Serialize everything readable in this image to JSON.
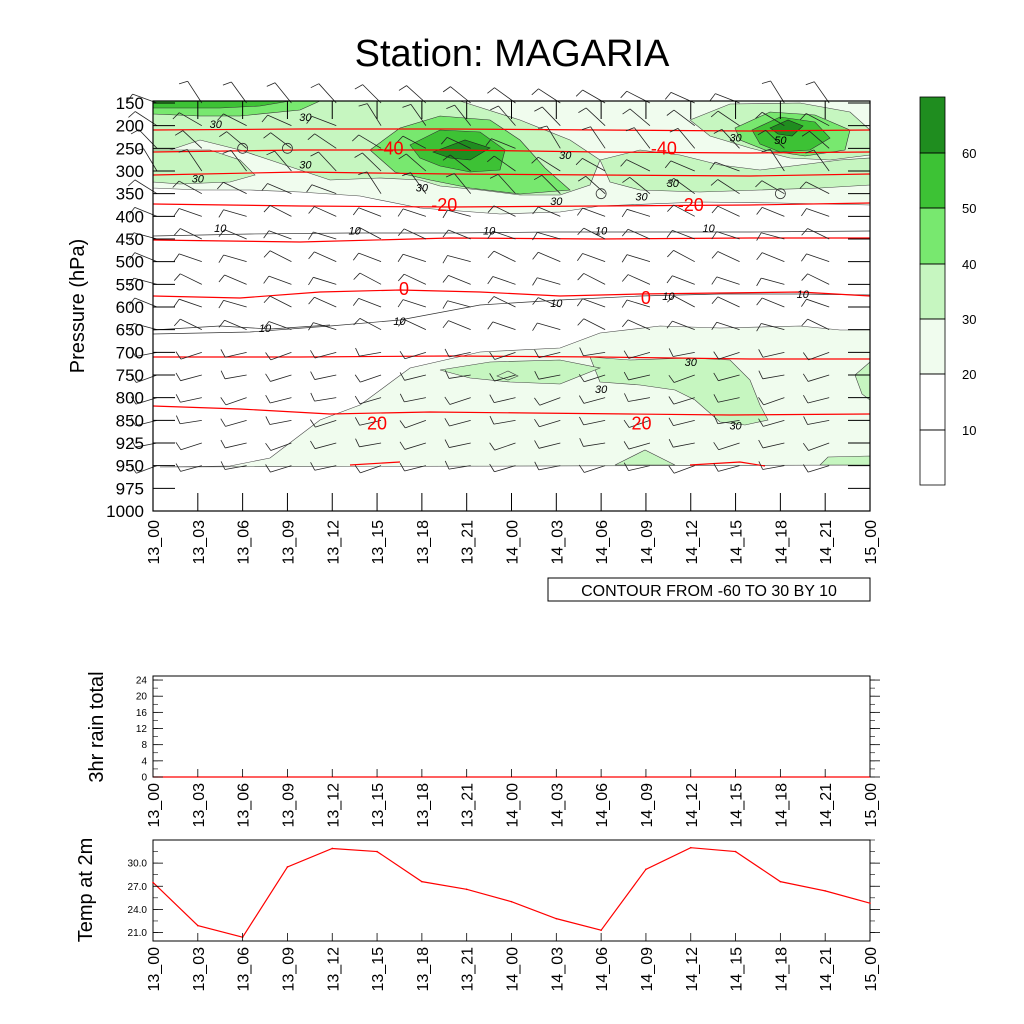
{
  "title": "Station: MAGARIA",
  "colors": {
    "iso": "#ff0000",
    "line": "#000000",
    "shade": [
      "#ffffff",
      "#ffffff",
      "#f0fcee",
      "#c6f6c0",
      "#78e86f",
      "#3dc235",
      "#1f8d1f"
    ]
  },
  "time_labels": [
    "13_00",
    "13_03",
    "13_06",
    "13_09",
    "13_12",
    "13_15",
    "13_18",
    "13_21",
    "14_00",
    "14_03",
    "14_06",
    "14_09",
    "14_12",
    "14_15",
    "14_18",
    "14_21",
    "15_00"
  ],
  "chart_data": [
    {
      "type": "heatmap",
      "name": "time-height cross section",
      "ylabel": "Pressure (hPa)",
      "y_categories": [
        "150",
        "200",
        "250",
        "300",
        "350",
        "400",
        "450",
        "500",
        "550",
        "600",
        "650",
        "700",
        "750",
        "800",
        "850",
        "925",
        "950",
        "975",
        "1000"
      ],
      "x_categories_ref": "time_labels",
      "info_label": "CONTOUR FROM -60 TO 30 BY 10",
      "colorbar": {
        "ticks": [
          "10",
          "20",
          "30",
          "40",
          "50",
          "60"
        ],
        "levels": [
          10,
          20,
          30,
          40,
          50,
          60
        ]
      },
      "isotherm_labels": [
        {
          "text": "-40",
          "t": 5.3,
          "p": 250
        },
        {
          "text": "-40",
          "t": 11.4,
          "p": 250
        },
        {
          "text": "-20",
          "t": 6.5,
          "p": 375
        },
        {
          "text": "-20",
          "t": 12.0,
          "p": 375
        },
        {
          "text": "0",
          "t": 5.6,
          "p": 560
        },
        {
          "text": "0",
          "t": 11.0,
          "p": 580
        },
        {
          "text": "20",
          "t": 5.0,
          "p": 860
        },
        {
          "text": "20",
          "t": 10.9,
          "p": 860
        }
      ],
      "contour_labels": [
        {
          "text": "30",
          "t": 1.4,
          "p": 205
        },
        {
          "text": "30",
          "t": 3.4,
          "p": 190
        },
        {
          "text": "30",
          "t": 3.4,
          "p": 295
        },
        {
          "text": "30",
          "t": 1.0,
          "p": 325
        },
        {
          "text": "30",
          "t": 6.0,
          "p": 345
        },
        {
          "text": "30",
          "t": 9.2,
          "p": 274
        },
        {
          "text": "30",
          "t": 9.0,
          "p": 375
        },
        {
          "text": "30",
          "t": 10.9,
          "p": 365
        },
        {
          "text": "30",
          "t": 11.6,
          "p": 335
        },
        {
          "text": "30",
          "t": 13.0,
          "p": 235
        },
        {
          "text": "50",
          "t": 14.0,
          "p": 240
        },
        {
          "text": "10",
          "t": 1.5,
          "p": 435
        },
        {
          "text": "10",
          "t": 4.5,
          "p": 440
        },
        {
          "text": "10",
          "t": 7.5,
          "p": 440
        },
        {
          "text": "10",
          "t": 10.0,
          "p": 440
        },
        {
          "text": "10",
          "t": 12.4,
          "p": 435
        },
        {
          "text": "10",
          "t": 2.5,
          "p": 655
        },
        {
          "text": "10",
          "t": 5.5,
          "p": 640
        },
        {
          "text": "10",
          "t": 9.0,
          "p": 600
        },
        {
          "text": "10",
          "t": 11.5,
          "p": 585
        },
        {
          "text": "10",
          "t": 14.5,
          "p": 580
        },
        {
          "text": "30",
          "t": 12.0,
          "p": 730
        },
        {
          "text": "30",
          "t": 10.0,
          "p": 790
        },
        {
          "text": "30",
          "t": 13.0,
          "p": 880
        }
      ],
      "calm_markers": [
        {
          "t": 2,
          "p": 250
        },
        {
          "t": 3,
          "p": 250
        },
        {
          "t": 10,
          "p": 350
        },
        {
          "t": 14,
          "p": 350
        }
      ]
    },
    {
      "type": "line",
      "name": "3hr rain total",
      "ylabel": "3hr rain total",
      "categories_ref": "time_labels",
      "values": [
        0,
        0,
        0,
        0,
        0,
        0,
        0,
        0,
        0,
        0,
        0,
        0,
        0,
        0,
        0,
        0,
        0
      ],
      "ylim": [
        0,
        25
      ],
      "yticks": [
        "0",
        "4",
        "8",
        "12",
        "16",
        "20",
        "24"
      ]
    },
    {
      "type": "line",
      "name": "Temp at 2m",
      "ylabel": "Temp at 2m",
      "categories_ref": "time_labels",
      "values": [
        27.5,
        21.9,
        20.4,
        29.5,
        31.9,
        31.5,
        27.6,
        26.6,
        25.0,
        22.8,
        21.3,
        29.2,
        32.0,
        31.5,
        27.6,
        26.4,
        24.8
      ],
      "ylim": [
        19.9,
        33.0
      ],
      "yticks": [
        "21.0",
        "24.0",
        "27.0",
        "30.0"
      ]
    }
  ]
}
